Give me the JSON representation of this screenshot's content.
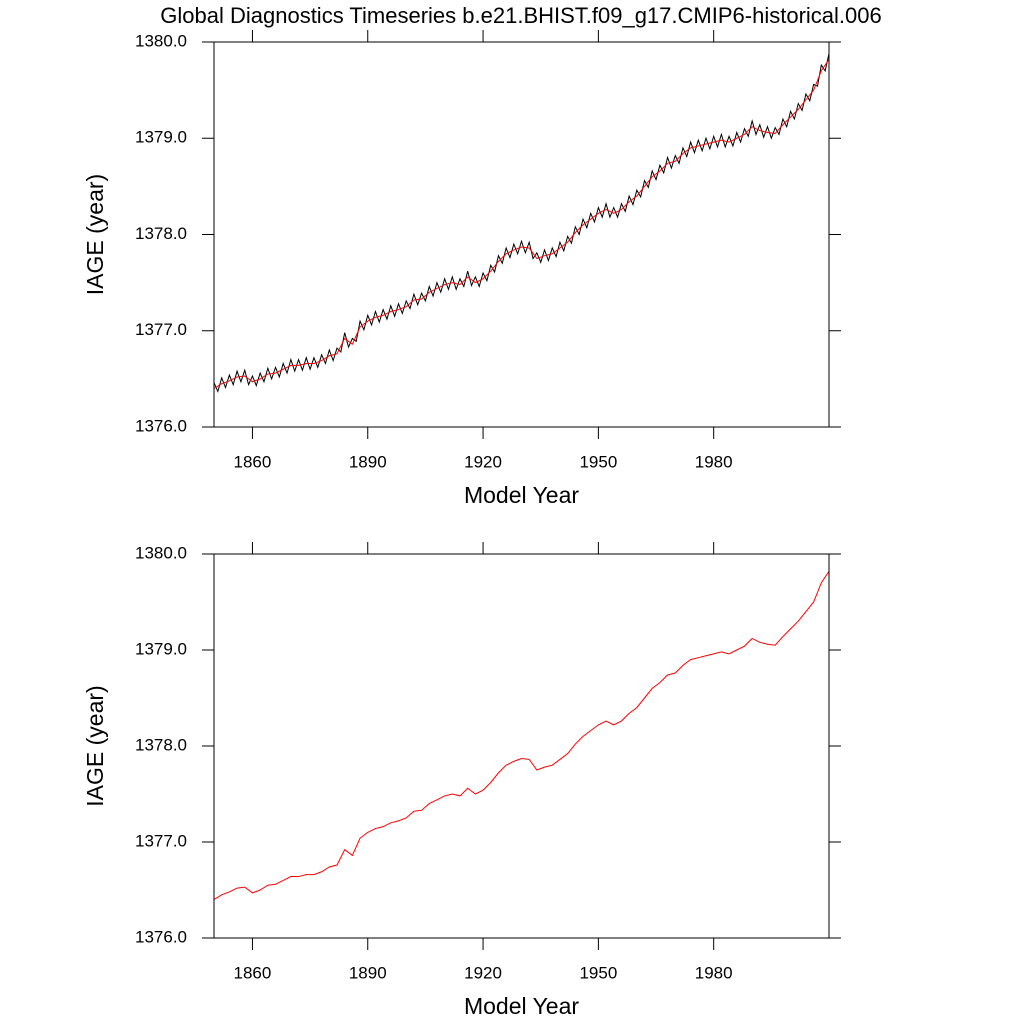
{
  "chart_data": [
    {
      "type": "line",
      "title": "Global Diagnostics Timeseries b.e21.BHIST.f09_g17.CMIP6-historical.006",
      "xlabel": "Model Year",
      "ylabel": "IAGE (year)",
      "xlim": [
        1850,
        2010
      ],
      "xticks": [
        1860,
        1890,
        1920,
        1950,
        1980
      ],
      "ylim": [
        1376,
        1380
      ],
      "yticks": [
        {
          "value": 1376,
          "label": "1376.0"
        },
        {
          "value": 1377,
          "label": "1377.0"
        },
        {
          "value": 1378,
          "label": "1378.0"
        },
        {
          "value": 1379,
          "label": "1379.0"
        },
        {
          "value": 1380,
          "label": "1380.0"
        }
      ],
      "series": [
        {
          "color": "#000000",
          "x": [
            1850,
            1851,
            1852,
            1853,
            1854,
            1855,
            1856,
            1857,
            1858,
            1859,
            1860,
            1861,
            1862,
            1863,
            1864,
            1865,
            1866,
            1867,
            1868,
            1869,
            1870,
            1871,
            1872,
            1873,
            1874,
            1875,
            1876,
            1877,
            1878,
            1879,
            1880,
            1881,
            1882,
            1883,
            1884,
            1885,
            1886,
            1887,
            1888,
            1889,
            1890,
            1891,
            1892,
            1893,
            1894,
            1895,
            1896,
            1897,
            1898,
            1899,
            1900,
            1901,
            1902,
            1903,
            1904,
            1905,
            1906,
            1907,
            1908,
            1909,
            1910,
            1911,
            1912,
            1913,
            1914,
            1915,
            1916,
            1917,
            1918,
            1919,
            1920,
            1921,
            1922,
            1923,
            1924,
            1925,
            1926,
            1927,
            1928,
            1929,
            1930,
            1931,
            1932,
            1933,
            1934,
            1935,
            1936,
            1937,
            1938,
            1939,
            1940,
            1941,
            1942,
            1943,
            1944,
            1945,
            1946,
            1947,
            1948,
            1949,
            1950,
            1951,
            1952,
            1953,
            1954,
            1955,
            1956,
            1957,
            1958,
            1959,
            1960,
            1961,
            1962,
            1963,
            1964,
            1965,
            1966,
            1967,
            1968,
            1969,
            1970,
            1971,
            1972,
            1973,
            1974,
            1975,
            1976,
            1977,
            1978,
            1979,
            1980,
            1981,
            1982,
            1983,
            1984,
            1985,
            1986,
            1987,
            1988,
            1989,
            1990,
            1991,
            1992,
            1993,
            1994,
            1995,
            1996,
            1997,
            1998,
            1999,
            2000,
            2001,
            2002,
            2003,
            2004,
            2005,
            2006,
            2007,
            2008,
            2009,
            2010
          ],
          "values": [
            1376.46,
            1376.37,
            1376.51,
            1376.41,
            1376.54,
            1376.44,
            1376.58,
            1376.47,
            1376.59,
            1376.44,
            1376.53,
            1376.43,
            1376.56,
            1376.47,
            1376.61,
            1376.5,
            1376.62,
            1376.52,
            1376.66,
            1376.56,
            1376.7,
            1376.58,
            1376.7,
            1376.59,
            1376.72,
            1376.6,
            1376.72,
            1376.62,
            1376.75,
            1376.66,
            1376.8,
            1376.69,
            1376.82,
            1376.78,
            1376.98,
            1376.83,
            1376.92,
            1376.89,
            1377.1,
            1377.01,
            1377.16,
            1377.06,
            1377.2,
            1377.09,
            1377.22,
            1377.12,
            1377.26,
            1377.15,
            1377.28,
            1377.18,
            1377.31,
            1377.23,
            1377.38,
            1377.27,
            1377.39,
            1377.31,
            1377.46,
            1377.36,
            1377.5,
            1377.4,
            1377.54,
            1377.43,
            1377.56,
            1377.43,
            1377.54,
            1377.46,
            1377.62,
            1377.47,
            1377.56,
            1377.46,
            1377.6,
            1377.52,
            1377.68,
            1377.61,
            1377.78,
            1377.7,
            1377.86,
            1377.76,
            1377.9,
            1377.8,
            1377.93,
            1377.81,
            1377.92,
            1377.75,
            1377.81,
            1377.71,
            1377.84,
            1377.73,
            1377.86,
            1377.77,
            1377.92,
            1377.83,
            1377.98,
            1377.91,
            1378.08,
            1378.0,
            1378.16,
            1378.07,
            1378.22,
            1378.13,
            1378.28,
            1378.18,
            1378.32,
            1378.18,
            1378.28,
            1378.18,
            1378.32,
            1378.24,
            1378.4,
            1378.31,
            1378.46,
            1378.39,
            1378.56,
            1378.49,
            1378.66,
            1378.57,
            1378.72,
            1378.64,
            1378.8,
            1378.69,
            1378.82,
            1378.74,
            1378.9,
            1378.81,
            1378.96,
            1378.85,
            1378.98,
            1378.87,
            1379.0,
            1378.89,
            1379.02,
            1378.91,
            1379.04,
            1378.91,
            1379.02,
            1378.92,
            1379.06,
            1378.96,
            1379.1,
            1379.02,
            1379.18,
            1379.04,
            1379.14,
            1379.01,
            1379.12,
            1379.0,
            1379.11,
            1379.04,
            1379.2,
            1379.12,
            1379.28,
            1379.2,
            1379.36,
            1379.29,
            1379.46,
            1379.39,
            1379.56,
            1379.54,
            1379.76,
            1379.7,
            1379.88
          ]
        },
        {
          "color": "#ff0000",
          "x": [
            1850,
            1852,
            1854,
            1856,
            1858,
            1860,
            1862,
            1864,
            1866,
            1868,
            1870,
            1872,
            1874,
            1876,
            1878,
            1880,
            1882,
            1884,
            1886,
            1888,
            1890,
            1892,
            1894,
            1896,
            1898,
            1900,
            1902,
            1904,
            1906,
            1908,
            1910,
            1912,
            1914,
            1916,
            1918,
            1920,
            1922,
            1924,
            1926,
            1928,
            1930,
            1932,
            1934,
            1936,
            1938,
            1940,
            1942,
            1944,
            1946,
            1948,
            1950,
            1952,
            1954,
            1956,
            1958,
            1960,
            1962,
            1964,
            1966,
            1968,
            1970,
            1972,
            1974,
            1976,
            1978,
            1980,
            1982,
            1984,
            1986,
            1988,
            1990,
            1992,
            1994,
            1996,
            1998,
            2000,
            2002,
            2004,
            2006,
            2008,
            2010
          ],
          "values": [
            1376.4,
            1376.45,
            1376.48,
            1376.52,
            1376.53,
            1376.47,
            1376.5,
            1376.55,
            1376.56,
            1376.6,
            1376.64,
            1376.64,
            1376.66,
            1376.66,
            1376.69,
            1376.74,
            1376.76,
            1376.92,
            1376.86,
            1377.04,
            1377.1,
            1377.14,
            1377.16,
            1377.2,
            1377.22,
            1377.25,
            1377.32,
            1377.33,
            1377.4,
            1377.44,
            1377.48,
            1377.5,
            1377.48,
            1377.56,
            1377.5,
            1377.54,
            1377.62,
            1377.72,
            1377.8,
            1377.84,
            1377.87,
            1377.86,
            1377.75,
            1377.78,
            1377.8,
            1377.86,
            1377.92,
            1378.02,
            1378.1,
            1378.16,
            1378.22,
            1378.26,
            1378.22,
            1378.26,
            1378.34,
            1378.4,
            1378.5,
            1378.6,
            1378.66,
            1378.74,
            1378.76,
            1378.84,
            1378.9,
            1378.92,
            1378.94,
            1378.96,
            1378.98,
            1378.96,
            1379.0,
            1379.04,
            1379.12,
            1379.08,
            1379.06,
            1379.05,
            1379.14,
            1379.22,
            1379.3,
            1379.4,
            1379.5,
            1379.7,
            1379.82
          ]
        }
      ]
    },
    {
      "type": "line",
      "xlabel": "Model Year",
      "ylabel": "IAGE (year)",
      "xlim": [
        1850,
        2010
      ],
      "xticks": [
        1860,
        1890,
        1920,
        1950,
        1980
      ],
      "ylim": [
        1376,
        1380
      ],
      "yticks": [
        {
          "value": 1376,
          "label": "1376.0"
        },
        {
          "value": 1377,
          "label": "1377.0"
        },
        {
          "value": 1378,
          "label": "1378.0"
        },
        {
          "value": 1379,
          "label": "1379.0"
        },
        {
          "value": 1380,
          "label": "1380.0"
        }
      ],
      "series": [
        {
          "color": "#ff0000",
          "x": [
            1850,
            1852,
            1854,
            1856,
            1858,
            1860,
            1862,
            1864,
            1866,
            1868,
            1870,
            1872,
            1874,
            1876,
            1878,
            1880,
            1882,
            1884,
            1886,
            1888,
            1890,
            1892,
            1894,
            1896,
            1898,
            1900,
            1902,
            1904,
            1906,
            1908,
            1910,
            1912,
            1914,
            1916,
            1918,
            1920,
            1922,
            1924,
            1926,
            1928,
            1930,
            1932,
            1934,
            1936,
            1938,
            1940,
            1942,
            1944,
            1946,
            1948,
            1950,
            1952,
            1954,
            1956,
            1958,
            1960,
            1962,
            1964,
            1966,
            1968,
            1970,
            1972,
            1974,
            1976,
            1978,
            1980,
            1982,
            1984,
            1986,
            1988,
            1990,
            1992,
            1994,
            1996,
            1998,
            2000,
            2002,
            2004,
            2006,
            2008,
            2010
          ],
          "values": [
            1376.4,
            1376.45,
            1376.48,
            1376.52,
            1376.53,
            1376.47,
            1376.5,
            1376.55,
            1376.56,
            1376.6,
            1376.64,
            1376.64,
            1376.66,
            1376.66,
            1376.69,
            1376.74,
            1376.76,
            1376.92,
            1376.86,
            1377.04,
            1377.1,
            1377.14,
            1377.16,
            1377.2,
            1377.22,
            1377.25,
            1377.32,
            1377.33,
            1377.4,
            1377.44,
            1377.48,
            1377.5,
            1377.48,
            1377.56,
            1377.5,
            1377.54,
            1377.62,
            1377.72,
            1377.8,
            1377.84,
            1377.87,
            1377.86,
            1377.75,
            1377.78,
            1377.8,
            1377.86,
            1377.92,
            1378.02,
            1378.1,
            1378.16,
            1378.22,
            1378.26,
            1378.22,
            1378.26,
            1378.34,
            1378.4,
            1378.5,
            1378.6,
            1378.66,
            1378.74,
            1378.76,
            1378.84,
            1378.9,
            1378.92,
            1378.94,
            1378.96,
            1378.98,
            1378.96,
            1379.0,
            1379.04,
            1379.12,
            1379.08,
            1379.06,
            1379.05,
            1379.14,
            1379.22,
            1379.3,
            1379.4,
            1379.5,
            1379.7,
            1379.82
          ]
        }
      ]
    }
  ]
}
